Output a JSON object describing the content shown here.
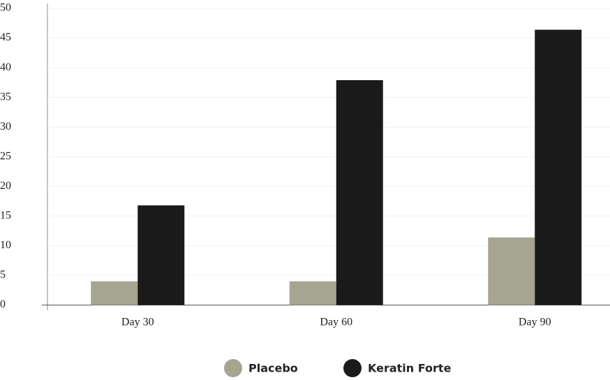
{
  "chart_data": {
    "type": "bar",
    "categories": [
      "Day 30",
      "Day 60",
      "Day 90"
    ],
    "series": [
      {
        "name": "Placebo",
        "color": "#a6a592",
        "values": [
          4.0,
          4.0,
          11.4
        ]
      },
      {
        "name": "Keratin Forte",
        "color": "#1a1a1a",
        "values": [
          16.8,
          37.9,
          46.4
        ]
      }
    ],
    "ylim": [
      0,
      50
    ],
    "yticks": [
      0,
      5,
      10,
      15,
      20,
      25,
      30,
      35,
      40,
      45,
      50
    ],
    "grid": true,
    "legend": "bottom"
  }
}
